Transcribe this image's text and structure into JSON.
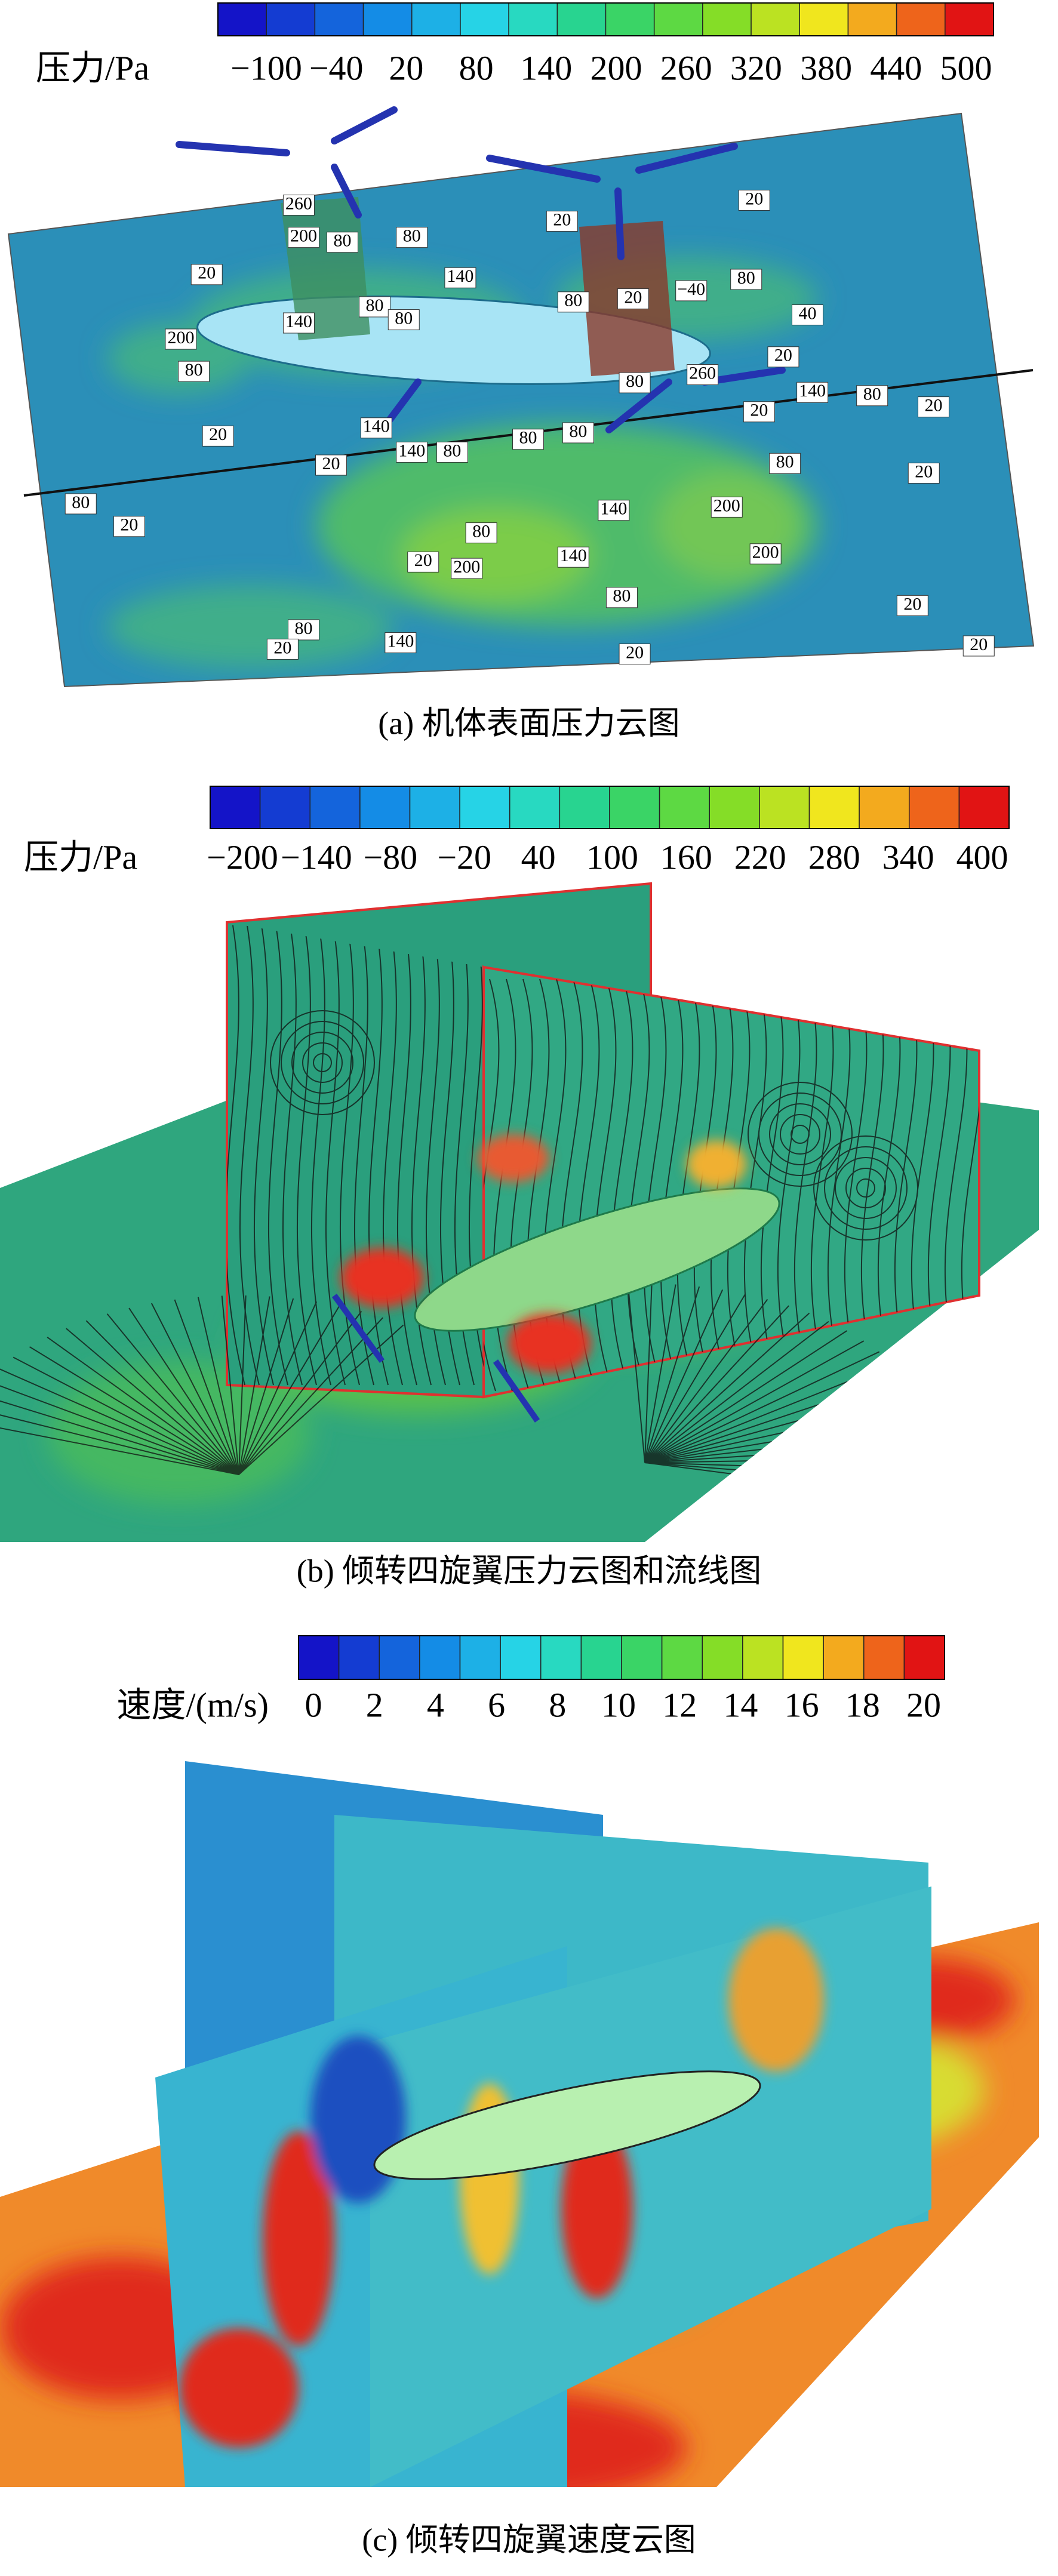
{
  "panel_a": {
    "colorbar_label": "压力/Pa",
    "colorbar_ticks": [
      "−100",
      "−40",
      20,
      80,
      140,
      200,
      260,
      320,
      380,
      440,
      500
    ],
    "contour_labels": [
      260,
      200,
      80,
      80,
      20,
      20,
      20,
      140,
      140,
      80,
      80,
      200,
      80,
      80,
      20,
      "−40",
      80,
      20,
      40,
      260,
      80,
      20,
      140,
      80,
      20,
      20,
      140,
      20,
      140,
      80,
      80,
      80,
      80,
      20,
      80,
      20,
      140,
      200,
      80,
      20,
      200,
      140,
      200,
      80,
      80,
      20,
      140,
      20,
      20,
      20
    ],
    "caption": "(a) 机体表面压力云图"
  },
  "panel_b": {
    "colorbar_label": "压力/Pa",
    "colorbar_ticks": [
      "−200",
      "−140",
      "−80",
      "−20",
      40,
      100,
      160,
      220,
      280,
      340,
      400
    ],
    "caption": "(b) 倾转四旋翼压力云图和流线图"
  },
  "panel_c": {
    "colorbar_label": "速度/(m/s)",
    "colorbar_ticks": [
      0,
      2,
      4,
      6,
      8,
      10,
      12,
      14,
      16,
      18,
      20
    ],
    "caption": "(c) 倾转四旋翼速度云图"
  }
}
